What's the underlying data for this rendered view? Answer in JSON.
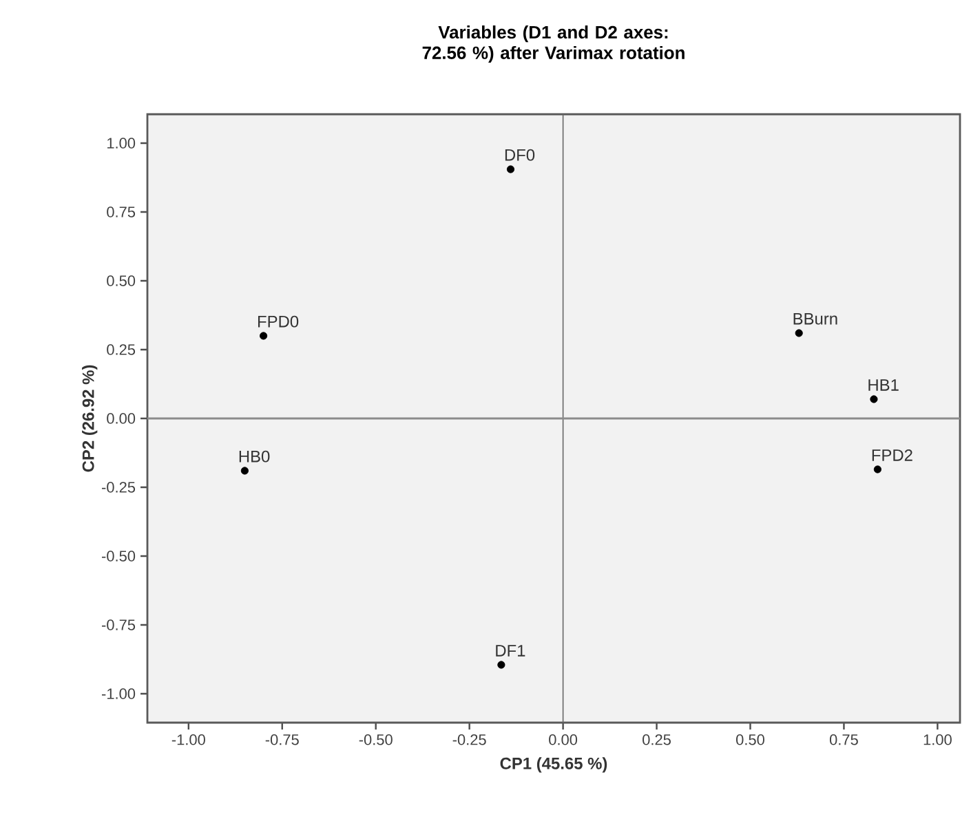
{
  "chart_data": {
    "type": "scatter",
    "title": "Variables (D1 and D2 axes: 72.56 %) after Varimax rotation",
    "xlabel": "CP1 (45.65 %)",
    "ylabel": "CP2 (26.92 %)",
    "series": [
      {
        "color": "#000000",
        "marker": "circle",
        "x": [
          -0.14,
          -0.8,
          -0.85,
          -0.165,
          0.63,
          0.83,
          0.84
        ],
        "values": [
          0.905,
          0.3,
          -0.19,
          -0.895,
          0.31,
          0.07,
          -0.185
        ]
      }
    ],
    "grid": false,
    "xlim": [
      -1.11,
      1.06
    ],
    "ylim": [
      -1.105,
      1.105
    ],
    "xticks": [
      {
        "value": -1,
        "label": "-1.00"
      },
      {
        "value": -0.75,
        "label": "-0.75"
      },
      {
        "value": -0.5,
        "label": "-0.50"
      },
      {
        "value": -0.25,
        "label": "-0.25"
      },
      {
        "value": 0,
        "label": "0.00"
      },
      {
        "value": 0.25,
        "label": "0.25"
      },
      {
        "value": 0.5,
        "label": "0.50"
      },
      {
        "value": 0.75,
        "label": "0.75"
      },
      {
        "value": 1,
        "label": "1.00"
      }
    ],
    "yticks": [
      {
        "value": -1,
        "label": "-1.00"
      },
      {
        "value": -0.75,
        "label": "-0.75"
      },
      {
        "value": -0.5,
        "label": "-0.50"
      },
      {
        "value": -0.25,
        "label": "-0.25"
      },
      {
        "value": 0,
        "label": "0.00"
      },
      {
        "value": 0.25,
        "label": "0.25"
      },
      {
        "value": 0.5,
        "label": "0.50"
      },
      {
        "value": 0.75,
        "label": "0.75"
      },
      {
        "value": 1,
        "label": "1.00"
      }
    ],
    "ref_lines": [
      {
        "axis": "x",
        "value": 0,
        "color": "#666666"
      },
      {
        "axis": "y",
        "value": 0,
        "color": "#8c8c8c"
      }
    ],
    "annotations": [
      {
        "text": "DF0",
        "x": -0.14,
        "y": 0.905
      },
      {
        "text": "FPD0",
        "x": -0.8,
        "y": 0.3
      },
      {
        "text": "HB0",
        "x": -0.85,
        "y": -0.19
      },
      {
        "text": "DF1",
        "x": -0.165,
        "y": -0.895
      },
      {
        "text": "BBurn",
        "x": 0.63,
        "y": 0.31
      },
      {
        "text": "HB1",
        "x": 0.83,
        "y": 0.07
      },
      {
        "text": "FPD2",
        "x": 0.84,
        "y": -0.185
      }
    ]
  }
}
